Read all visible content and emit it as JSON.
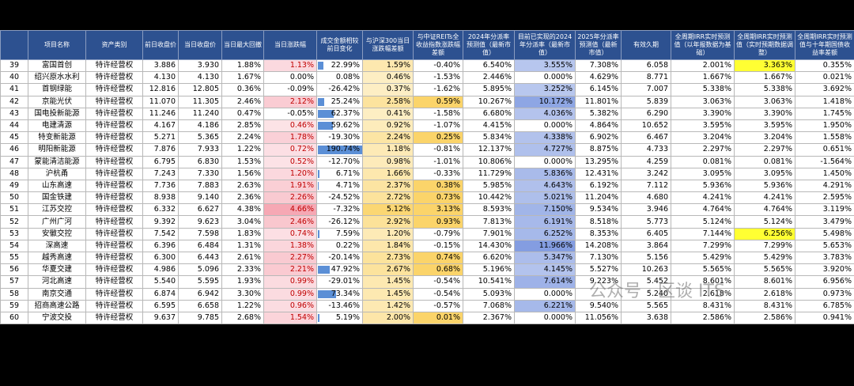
{
  "header": [
    "项目名称",
    "资产类别",
    "前日收盘价",
    "当日收盘价",
    "当日最大回撤",
    "当日涨跌幅",
    "成交金额相较前日变化",
    "与沪深300当日涨跌幅差额",
    "与中证REITs全收益指数涨跌幅差额",
    "2024年分派率预测值（最新市值）",
    "目前已实现的2024年分派率（最新市值）",
    "2025年分派率预测值（最新市值）",
    "有效久期",
    "全周期IRR实时预测值（以年报数据为基础）",
    "全周期IRR实时预测值（实时预期数据调整）",
    "全周期IRR实时预测值与十年期国债收益率差额"
  ],
  "rows": [
    [
      "39",
      "富国首创",
      "特许经营权",
      "3.886",
      "3.930",
      "1.88%",
      "1.13%",
      "22.99%",
      "1.59%",
      "-0.40%",
      "6.540%",
      "3.555%",
      "7.308%",
      "6.058",
      "2.001%",
      "3.363%",
      "0.355%"
    ],
    [
      "40",
      "绍兴原水水利",
      "特许经营权",
      "4.130",
      "4.130",
      "1.67%",
      "0.00%",
      "0.08%",
      "0.46%",
      "-1.53%",
      "2.446%",
      "0.000%",
      "4.629%",
      "8.771",
      "1.667%",
      "1.667%",
      "0.021%"
    ],
    [
      "41",
      "首钢绿能",
      "特许经营权",
      "12.816",
      "12.805",
      "0.36%",
      "-0.09%",
      "-26.42%",
      "0.37%",
      "-1.62%",
      "5.895%",
      "3.252%",
      "6.145%",
      "7.007",
      "5.338%",
      "5.338%",
      "3.692%"
    ],
    [
      "42",
      "京能光伏",
      "特许经营权",
      "11.070",
      "11.305",
      "2.46%",
      "2.12%",
      "25.24%",
      "2.58%",
      "0.59%",
      "10.267%",
      "10.172%",
      "11.801%",
      "5.839",
      "3.063%",
      "3.063%",
      "1.418%"
    ],
    [
      "43",
      "国电投新能源",
      "特许经营权",
      "11.246",
      "11.240",
      "0.47%",
      "-0.05%",
      "62.37%",
      "0.41%",
      "-1.58%",
      "6.680%",
      "4.036%",
      "5.382%",
      "6.290",
      "3.390%",
      "3.390%",
      "1.745%"
    ],
    [
      "44",
      "电建清源",
      "特许经营权",
      "4.167",
      "4.186",
      "2.85%",
      "0.46%",
      "59.62%",
      "0.92%",
      "-1.07%",
      "4.415%",
      "0.000%",
      "4.864%",
      "10.652",
      "3.595%",
      "3.595%",
      "1.950%"
    ],
    [
      "45",
      "特变新能源",
      "特许经营权",
      "5.271",
      "5.365",
      "2.24%",
      "1.78%",
      "-19.30%",
      "2.24%",
      "0.25%",
      "5.834%",
      "4.338%",
      "6.902%",
      "6.467",
      "3.204%",
      "3.204%",
      "1.558%"
    ],
    [
      "46",
      "明阳新能源",
      "特许经营权",
      "7.876",
      "7.933",
      "1.22%",
      "0.72%",
      "190.74%",
      "1.18%",
      "-0.81%",
      "12.137%",
      "4.727%",
      "8.875%",
      "4.733",
      "2.297%",
      "2.297%",
      "0.651%"
    ],
    [
      "47",
      "蒙能清洁能源",
      "特许经营权",
      "6.795",
      "6.830",
      "1.53%",
      "0.52%",
      "-12.70%",
      "0.98%",
      "-1.01%",
      "10.806%",
      "0.000%",
      "13.295%",
      "4.259",
      "0.081%",
      "0.081%",
      "-1.564%"
    ],
    [
      "48",
      "沪杭甬",
      "特许经营权",
      "7.243",
      "7.330",
      "1.56%",
      "1.20%",
      "6.71%",
      "1.66%",
      "-0.33%",
      "11.729%",
      "5.836%",
      "12.431%",
      "3.242",
      "3.095%",
      "3.095%",
      "1.450%"
    ],
    [
      "49",
      "山东高速",
      "特许经营权",
      "7.736",
      "7.883",
      "2.63%",
      "1.91%",
      "4.71%",
      "2.37%",
      "0.38%",
      "5.985%",
      "4.643%",
      "6.192%",
      "7.112",
      "5.936%",
      "5.936%",
      "4.291%"
    ],
    [
      "50",
      "国金铁建",
      "特许经营权",
      "8.938",
      "9.140",
      "2.36%",
      "2.26%",
      "-24.52%",
      "2.72%",
      "0.73%",
      "10.442%",
      "5.021%",
      "11.204%",
      "4.680",
      "4.241%",
      "4.241%",
      "2.595%"
    ],
    [
      "51",
      "江苏交控",
      "特许经营权",
      "6.332",
      "6.627",
      "4.38%",
      "4.66%",
      "-7.32%",
      "5.12%",
      "3.13%",
      "8.593%",
      "7.150%",
      "9.534%",
      "3.946",
      "4.764%",
      "4.764%",
      "3.119%"
    ],
    [
      "52",
      "广州广河",
      "特许经营权",
      "9.392",
      "9.623",
      "3.04%",
      "2.46%",
      "-26.12%",
      "2.92%",
      "0.93%",
      "7.813%",
      "6.191%",
      "8.518%",
      "5.773",
      "5.124%",
      "5.124%",
      "3.479%"
    ],
    [
      "53",
      "安徽交控",
      "特许经营权",
      "7.542",
      "7.598",
      "1.83%",
      "0.74%",
      "7.59%",
      "1.20%",
      "-0.79%",
      "7.901%",
      "6.252%",
      "8.353%",
      "6.405",
      "7.144%",
      "6.256%",
      "5.498%"
    ],
    [
      "54",
      "深高速",
      "特许经营权",
      "6.396",
      "6.484",
      "1.31%",
      "1.38%",
      "0.22%",
      "1.84%",
      "-0.15%",
      "14.430%",
      "11.966%",
      "14.208%",
      "3.864",
      "7.299%",
      "7.299%",
      "5.653%"
    ],
    [
      "55",
      "越秀高速",
      "特许经营权",
      "6.300",
      "6.443",
      "2.61%",
      "2.27%",
      "-20.14%",
      "2.73%",
      "0.74%",
      "6.620%",
      "5.347%",
      "7.130%",
      "5.156",
      "5.429%",
      "5.429%",
      "3.783%"
    ],
    [
      "56",
      "华夏交建",
      "特许经营权",
      "4.986",
      "5.096",
      "2.33%",
      "2.21%",
      "47.92%",
      "2.67%",
      "0.68%",
      "5.196%",
      "4.145%",
      "5.527%",
      "10.263",
      "5.565%",
      "5.565%",
      "3.920%"
    ],
    [
      "57",
      "河北高速",
      "特许经营权",
      "5.540",
      "5.595",
      "1.93%",
      "0.99%",
      "-29.01%",
      "1.45%",
      "-0.54%",
      "10.541%",
      "7.614%",
      "9.223%",
      "5.452",
      "8.601%",
      "8.601%",
      "6.956%"
    ],
    [
      "58",
      "南京交通",
      "特许经营权",
      "6.874",
      "6.942",
      "3.30%",
      "0.99%",
      "73.34%",
      "1.45%",
      "-0.54%",
      "5.093%",
      "0.000%",
      null,
      "5.240",
      "2.618%",
      "2.618%",
      "0.973%"
    ],
    [
      "59",
      "招商高速公路",
      "特许经营权",
      "6.595",
      "6.658",
      "1.22%",
      "0.96%",
      "-13.46%",
      "1.42%",
      "-0.57%",
      "7.068%",
      "6.221%",
      "9.540%",
      "5.565",
      "8.431%",
      "8.431%",
      "6.785%"
    ],
    [
      "60",
      "宁波交投",
      "特许经营权",
      "9.637",
      "9.785",
      "2.68%",
      "1.54%",
      "5.19%",
      "2.00%",
      "0.01%",
      "2.367%",
      "0.000%",
      "11.056%",
      "3.638",
      "2.586%",
      "2.586%",
      "0.941%"
    ]
  ],
  "watermark": "公众号 · 区谈 ITS"
}
